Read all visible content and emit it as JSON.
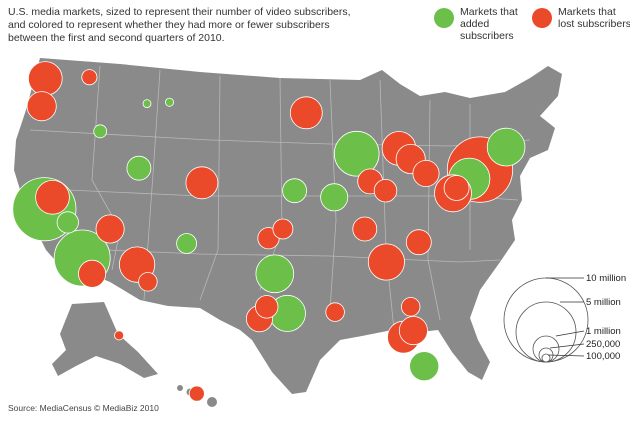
{
  "header": {
    "intro": "U.S. media markets, sized to represent their number of video subscribers, and colored to represent whether they had more or fewer subscribers between the first and second quarters of 2010."
  },
  "legend": {
    "added_label": "Markets that added subscribers",
    "lost_label": "Markets that lost subscribers",
    "added_color": "#6cc04a",
    "lost_color": "#ea4a2a"
  },
  "size_scale": {
    "labels": [
      "10 million",
      "5 million",
      "1 million",
      "250,000",
      "100,000"
    ],
    "values": [
      10000000,
      5000000,
      1000000,
      250000,
      100000
    ]
  },
  "source": "Source: MediaCensus © MediaBiz 2010",
  "map": {
    "land_color": "#8a8a8a",
    "border_color": "#b8b8b8",
    "markets": [
      {
        "lon": -122.4,
        "lat": 37.7,
        "size": 7000000,
        "status": "added"
      },
      {
        "lon": -121.5,
        "lat": 38.6,
        "size": 2000000,
        "status": "lost"
      },
      {
        "lon": -118.2,
        "lat": 34.0,
        "size": 5500000,
        "status": "added"
      },
      {
        "lon": -117.1,
        "lat": 32.8,
        "size": 1300000,
        "status": "lost"
      },
      {
        "lon": -119.8,
        "lat": 36.7,
        "size": 800000,
        "status": "added"
      },
      {
        "lon": -122.3,
        "lat": 47.6,
        "size": 2000000,
        "status": "lost"
      },
      {
        "lon": -122.7,
        "lat": 45.5,
        "size": 1500000,
        "status": "lost"
      },
      {
        "lon": -117.4,
        "lat": 47.7,
        "size": 400000,
        "status": "lost"
      },
      {
        "lon": -111.9,
        "lat": 40.8,
        "size": 1000000,
        "status": "added"
      },
      {
        "lon": -115.1,
        "lat": 36.2,
        "size": 1400000,
        "status": "lost"
      },
      {
        "lon": -112.1,
        "lat": 33.5,
        "size": 2200000,
        "status": "lost"
      },
      {
        "lon": -110.9,
        "lat": 32.2,
        "size": 600000,
        "status": "lost"
      },
      {
        "lon": -106.6,
        "lat": 35.1,
        "size": 700000,
        "status": "added"
      },
      {
        "lon": -104.9,
        "lat": 39.7,
        "size": 1800000,
        "status": "lost"
      },
      {
        "lon": -116.2,
        "lat": 43.6,
        "size": 300000,
        "status": "added"
      },
      {
        "lon": -108.5,
        "lat": 45.8,
        "size": 120000,
        "status": "added"
      },
      {
        "lon": -111.0,
        "lat": 45.7,
        "size": 110000,
        "status": "added"
      },
      {
        "lon": -96.8,
        "lat": 32.8,
        "size": 2500000,
        "status": "added"
      },
      {
        "lon": -95.4,
        "lat": 29.8,
        "size": 2300000,
        "status": "added"
      },
      {
        "lon": -98.5,
        "lat": 29.4,
        "size": 1200000,
        "status": "lost"
      },
      {
        "lon": -97.7,
        "lat": 30.3,
        "size": 900000,
        "status": "lost"
      },
      {
        "lon": -97.5,
        "lat": 35.5,
        "size": 800000,
        "status": "lost"
      },
      {
        "lon": -95.9,
        "lat": 36.2,
        "size": 700000,
        "status": "lost"
      },
      {
        "lon": -94.6,
        "lat": 39.1,
        "size": 1000000,
        "status": "added"
      },
      {
        "lon": -90.2,
        "lat": 38.6,
        "size": 1300000,
        "status": "added"
      },
      {
        "lon": -93.3,
        "lat": 45.0,
        "size": 1800000,
        "status": "lost"
      },
      {
        "lon": -87.7,
        "lat": 41.9,
        "size": 3500000,
        "status": "added"
      },
      {
        "lon": -83.0,
        "lat": 42.3,
        "size": 2000000,
        "status": "lost"
      },
      {
        "lon": -81.7,
        "lat": 41.5,
        "size": 1500000,
        "status": "lost"
      },
      {
        "lon": -80.0,
        "lat": 40.4,
        "size": 1200000,
        "status": "lost"
      },
      {
        "lon": -75.2,
        "lat": 40.0,
        "size": 3000000,
        "status": "added"
      },
      {
        "lon": -74.0,
        "lat": 40.7,
        "size": 7500000,
        "status": "lost"
      },
      {
        "lon": -71.1,
        "lat": 42.4,
        "size": 2500000,
        "status": "added"
      },
      {
        "lon": -77.0,
        "lat": 38.9,
        "size": 2400000,
        "status": "lost"
      },
      {
        "lon": -76.6,
        "lat": 39.3,
        "size": 1100000,
        "status": "lost"
      },
      {
        "lon": -84.4,
        "lat": 33.7,
        "size": 2300000,
        "status": "lost"
      },
      {
        "lon": -80.8,
        "lat": 35.2,
        "size": 1100000,
        "status": "lost"
      },
      {
        "lon": -86.8,
        "lat": 36.2,
        "size": 1000000,
        "status": "lost"
      },
      {
        "lon": -90.1,
        "lat": 29.9,
        "size": 600000,
        "status": "lost"
      },
      {
        "lon": -81.4,
        "lat": 28.5,
        "size": 1400000,
        "status": "lost"
      },
      {
        "lon": -82.5,
        "lat": 28.0,
        "size": 1800000,
        "status": "lost"
      },
      {
        "lon": -80.2,
        "lat": 25.8,
        "size": 1500000,
        "status": "added"
      },
      {
        "lon": -81.7,
        "lat": 30.3,
        "size": 600000,
        "status": "lost"
      },
      {
        "lon": -86.2,
        "lat": 39.8,
        "size": 1100000,
        "status": "lost"
      },
      {
        "lon": -84.5,
        "lat": 39.1,
        "size": 900000,
        "status": "lost"
      },
      {
        "lon": -149.9,
        "lat": 61.2,
        "size": 150000,
        "status": "lost"
      },
      {
        "lon": -157.9,
        "lat": 21.3,
        "size": 400000,
        "status": "lost"
      }
    ]
  }
}
